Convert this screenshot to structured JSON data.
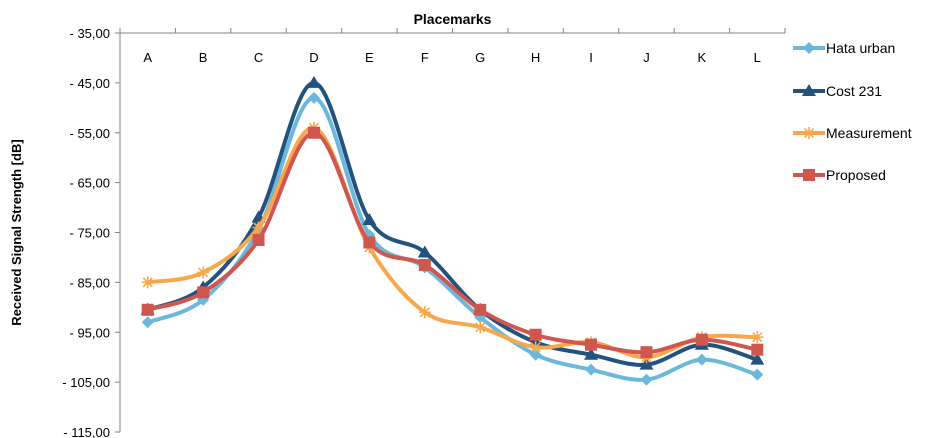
{
  "chart_data": {
    "type": "line",
    "title": "Placemarks",
    "xlabel": "",
    "ylabel": "Received Signal Strength [dB]",
    "categories": [
      "A",
      "B",
      "C",
      "D",
      "E",
      "F",
      "G",
      "H",
      "I",
      "J",
      "K",
      "L"
    ],
    "x_axis_position": "top",
    "ylim": [
      -115,
      -35
    ],
    "y_ticks": [
      "- 35,00",
      "- 45,00",
      "- 55,00",
      "- 65,00",
      "- 75,00",
      "- 85,00",
      "- 95,00",
      "- 105,00",
      "- 115,00"
    ],
    "y_tick_values": [
      -35,
      -45,
      -55,
      -65,
      -75,
      -85,
      -95,
      -105,
      -115
    ],
    "grid": false,
    "smooth": true,
    "legend": "right",
    "series": [
      {
        "name": "Hata urban",
        "color": "#6cb8dc",
        "marker": "diamond",
        "values": [
          -93.0,
          -88.5,
          -74.5,
          -48.0,
          -75.5,
          -82.0,
          -92.0,
          -99.5,
          -102.5,
          -104.5,
          -100.5,
          -103.5
        ]
      },
      {
        "name": "Cost 231",
        "color": "#23527f",
        "marker": "triangle",
        "values": [
          -90.5,
          -86.0,
          -72.0,
          -45.0,
          -72.5,
          -79.0,
          -90.5,
          -97.0,
          -99.5,
          -101.5,
          -97.5,
          -100.5
        ]
      },
      {
        "name": "Measurement",
        "color": "#f7a84d",
        "marker": "star",
        "values": [
          -85.0,
          -83.0,
          -74.0,
          -54.0,
          -78.0,
          -91.0,
          -94.0,
          -98.0,
          -97.0,
          -100.0,
          -96.0,
          -96.0
        ]
      },
      {
        "name": "Proposed",
        "color": "#d05650",
        "marker": "square",
        "values": [
          -90.5,
          -87.0,
          -76.5,
          -55.0,
          -77.0,
          -81.5,
          -90.5,
          -95.5,
          -97.5,
          -99.0,
          -96.5,
          -98.5
        ]
      }
    ]
  }
}
